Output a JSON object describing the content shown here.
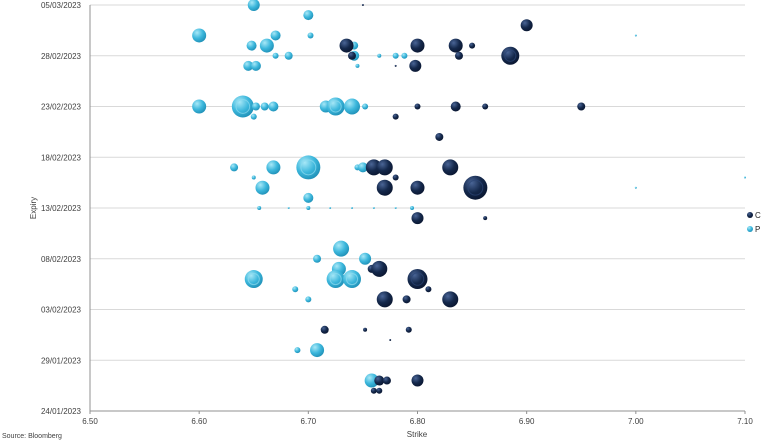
{
  "source": "Source: Bloomberg",
  "chart_data": {
    "type": "scatter",
    "subtype": "bubble",
    "title": "",
    "xlabel": "Strike",
    "ylabel": "Expiry",
    "xlim": [
      6.5,
      7.1
    ],
    "x_ticks": [
      "6.50",
      "6.60",
      "6.70",
      "6.80",
      "6.90",
      "7.00",
      "7.10"
    ],
    "y_ticks": [
      "05/03/2023",
      "28/02/2023",
      "23/02/2023",
      "18/02/2023",
      "13/02/2023",
      "08/02/2023",
      "03/02/2023",
      "29/01/2023",
      "24/01/2023"
    ],
    "ylim_days": [
      0,
      40
    ],
    "y_origin_date": "24/01/2023",
    "legend_position": "right",
    "colors": {
      "C": "#14284b",
      "P": "#3cb7dc"
    },
    "series": [
      {
        "name": "C",
        "points": [
          [
            6.75,
            40,
            1
          ],
          [
            6.9,
            38,
            6
          ],
          [
            6.735,
            36,
            7
          ],
          [
            6.8,
            36,
            7
          ],
          [
            6.835,
            36,
            7
          ],
          [
            6.85,
            36,
            3
          ],
          [
            6.74,
            35,
            4
          ],
          [
            6.838,
            35,
            4
          ],
          [
            6.885,
            35,
            9
          ],
          [
            6.798,
            34,
            6
          ],
          [
            6.78,
            34,
            1
          ],
          [
            6.8,
            30,
            3
          ],
          [
            6.835,
            30,
            5
          ],
          [
            6.862,
            30,
            3
          ],
          [
            6.95,
            30,
            4
          ],
          [
            6.78,
            29,
            3
          ],
          [
            6.82,
            27,
            4
          ],
          [
            6.76,
            24,
            8
          ],
          [
            6.77,
            24,
            8
          ],
          [
            6.83,
            24,
            8
          ],
          [
            6.78,
            23,
            3
          ],
          [
            6.77,
            22,
            8
          ],
          [
            6.8,
            22,
            7
          ],
          [
            6.853,
            22,
            12
          ],
          [
            6.8,
            19,
            6
          ],
          [
            6.862,
            19,
            2
          ],
          [
            6.758,
            14,
            4
          ],
          [
            6.765,
            14,
            8
          ],
          [
            6.8,
            13,
            10
          ],
          [
            6.81,
            12,
            3
          ],
          [
            6.77,
            11,
            8
          ],
          [
            6.79,
            11,
            4
          ],
          [
            6.83,
            11,
            8
          ],
          [
            6.715,
            8,
            4
          ],
          [
            6.752,
            8,
            2
          ],
          [
            6.792,
            8,
            3
          ],
          [
            6.775,
            7,
            1
          ],
          [
            6.765,
            3,
            5
          ],
          [
            6.772,
            3,
            4
          ],
          [
            6.8,
            3,
            6
          ],
          [
            6.76,
            2,
            3
          ],
          [
            6.765,
            2,
            3
          ]
        ]
      },
      {
        "name": "P",
        "points": [
          [
            6.65,
            40,
            6
          ],
          [
            6.7,
            39,
            5
          ],
          [
            6.6,
            37,
            7
          ],
          [
            6.67,
            37,
            5
          ],
          [
            6.702,
            37,
            3
          ],
          [
            6.648,
            36,
            5
          ],
          [
            6.662,
            36,
            7
          ],
          [
            6.742,
            36,
            4
          ],
          [
            6.67,
            35,
            3
          ],
          [
            6.682,
            35,
            4
          ],
          [
            6.742,
            35,
            5
          ],
          [
            6.765,
            35,
            2
          ],
          [
            6.78,
            35,
            3
          ],
          [
            6.788,
            35,
            3
          ],
          [
            6.645,
            34,
            5
          ],
          [
            6.652,
            34,
            5
          ],
          [
            6.745,
            34,
            2
          ],
          [
            7.0,
            37,
            1
          ],
          [
            6.6,
            30,
            7
          ],
          [
            6.64,
            30,
            11
          ],
          [
            6.652,
            30,
            4
          ],
          [
            6.66,
            30,
            4
          ],
          [
            6.668,
            30,
            5
          ],
          [
            6.716,
            30,
            6
          ],
          [
            6.725,
            30,
            9
          ],
          [
            6.74,
            30,
            8
          ],
          [
            6.752,
            30,
            3
          ],
          [
            6.65,
            29,
            3
          ],
          [
            6.632,
            24,
            4
          ],
          [
            6.668,
            24,
            7
          ],
          [
            6.7,
            24,
            12
          ],
          [
            6.745,
            24,
            3
          ],
          [
            6.75,
            24,
            5
          ],
          [
            6.65,
            23,
            2
          ],
          [
            6.658,
            22,
            7
          ],
          [
            6.7,
            21,
            5
          ],
          [
            6.655,
            20,
            2
          ],
          [
            6.682,
            20,
            1
          ],
          [
            6.7,
            20,
            2
          ],
          [
            6.72,
            20,
            1
          ],
          [
            6.74,
            20,
            1
          ],
          [
            6.76,
            20,
            1
          ],
          [
            6.78,
            20,
            1
          ],
          [
            6.795,
            20,
            2
          ],
          [
            7.0,
            22,
            1
          ],
          [
            7.1,
            23,
            1
          ],
          [
            6.73,
            16,
            8
          ],
          [
            6.708,
            15,
            4
          ],
          [
            6.752,
            15,
            6
          ],
          [
            6.728,
            14,
            7
          ],
          [
            6.76,
            14,
            3
          ],
          [
            6.65,
            13,
            9
          ],
          [
            6.725,
            13,
            9
          ],
          [
            6.74,
            13,
            9
          ],
          [
            6.688,
            12,
            3
          ],
          [
            6.7,
            11,
            3
          ],
          [
            6.708,
            6,
            7
          ],
          [
            6.69,
            6,
            3
          ],
          [
            6.758,
            3,
            7
          ]
        ]
      }
    ]
  }
}
